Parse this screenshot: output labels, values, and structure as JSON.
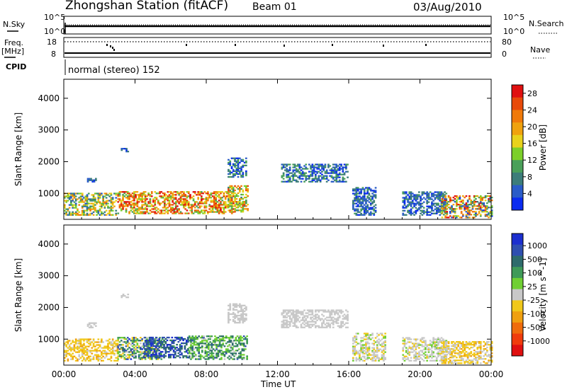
{
  "header": {
    "station": "Zhongshan Station (fitACF)",
    "beam": "Beam 01",
    "date": "03/Aug/2010",
    "mode": "normal (stereo) 152"
  },
  "aux_panels": {
    "nsky_label": "N.Sky",
    "nsky_ticks": [
      "10^5",
      "10^0"
    ],
    "nsearch_label": "N.Search",
    "nsearch_ticks": [
      "10^5",
      "10^0"
    ],
    "freq_label": "Freq.",
    "freq_unit": "[MHz]",
    "freq_ticks": [
      "18",
      "8"
    ],
    "nave_label": "Nave",
    "nave_ticks": [
      "80",
      "0"
    ],
    "cpid_label": "CPID"
  },
  "colors": {
    "power": [
      "#0a2bf0",
      "#2a5cc8",
      "#3c7d7a",
      "#4aa05a",
      "#7ccf2a",
      "#e8d21c",
      "#f0a20e",
      "#f07a0a",
      "#e84a0a",
      "#e01010"
    ],
    "velocity": [
      "#1c2fcf",
      "#2f4fb0",
      "#2e6b6c",
      "#3f9a58",
      "#70cf33",
      "#c8c8c8",
      "#f0c81a",
      "#f0a010",
      "#f06c0c",
      "#f03c0c",
      "#e01010"
    ]
  },
  "chart_data": [
    {
      "type": "heatmap",
      "name": "power",
      "xlabel": "",
      "ylabel": "Slant Range [km]",
      "x_ticks": [
        "00:00",
        "04:00",
        "08:00",
        "12:00",
        "16:00",
        "20:00",
        "00:00"
      ],
      "y_ticks": [
        "1000",
        "2000",
        "3000",
        "4000"
      ],
      "xlim_hours": [
        0,
        24
      ],
      "ylim_km": [
        180,
        4600
      ],
      "colorbar": {
        "label": "Power [dB]",
        "ticks": [
          "4",
          "8",
          "12",
          "16",
          "20",
          "24",
          "28"
        ],
        "range": [
          0,
          30
        ]
      },
      "regions": [
        {
          "t0": 0.0,
          "t1": 2.9,
          "r0": 300,
          "r1": 1000,
          "v0": 3,
          "v1": 22
        },
        {
          "t0": 3.0,
          "t1": 9.5,
          "r0": 350,
          "r1": 1050,
          "v0": 10,
          "v1": 30
        },
        {
          "t0": 9.2,
          "t1": 10.3,
          "r0": 400,
          "r1": 1250,
          "v0": 8,
          "v1": 26
        },
        {
          "t0": 9.2,
          "t1": 10.2,
          "r0": 1500,
          "r1": 2100,
          "v0": 1,
          "v1": 12
        },
        {
          "t0": 12.2,
          "t1": 15.9,
          "r0": 1350,
          "r1": 1900,
          "v0": 1,
          "v1": 12
        },
        {
          "t0": 16.2,
          "t1": 17.5,
          "r0": 300,
          "r1": 1200,
          "v0": 1,
          "v1": 10
        },
        {
          "t0": 19.0,
          "t1": 21.5,
          "r0": 300,
          "r1": 1050,
          "v0": 1,
          "v1": 10
        },
        {
          "t0": 21.2,
          "t1": 24.0,
          "r0": 220,
          "r1": 900,
          "v0": 2,
          "v1": 30
        },
        {
          "t0": 1.3,
          "t1": 1.8,
          "r0": 1350,
          "r1": 1500,
          "v0": 1,
          "v1": 8
        },
        {
          "t0": 3.2,
          "t1": 3.6,
          "r0": 2300,
          "r1": 2400,
          "v0": 1,
          "v1": 8
        }
      ]
    },
    {
      "type": "heatmap",
      "name": "velocity",
      "xlabel": "Time UT",
      "ylabel": "Slant Range [km]",
      "x_ticks": [
        "00:00",
        "04:00",
        "08:00",
        "12:00",
        "16:00",
        "20:00",
        "00:00"
      ],
      "y_ticks": [
        "1000",
        "2000",
        "3000",
        "4000"
      ],
      "xlim_hours": [
        0,
        24
      ],
      "ylim_km": [
        180,
        4600
      ],
      "colorbar": {
        "label": "Velocity [m s^-1]",
        "ticks": [
          "1000",
          "500",
          "100",
          "25",
          "-25",
          "-100",
          "-500",
          "-1000"
        ],
        "range": [
          -1200,
          1200
        ]
      },
      "regions": [
        {
          "t0": 0.0,
          "t1": 3.0,
          "r0": 300,
          "r1": 1000,
          "v0": -400,
          "v1": -50
        },
        {
          "t0": 3.0,
          "t1": 5.5,
          "r0": 350,
          "r1": 1050,
          "v0": -300,
          "v1": 1000
        },
        {
          "t0": 4.5,
          "t1": 7.0,
          "r0": 400,
          "r1": 1050,
          "v0": 500,
          "v1": 1200
        },
        {
          "t0": 7.0,
          "t1": 10.3,
          "r0": 350,
          "r1": 1100,
          "v0": 50,
          "v1": 800
        },
        {
          "t0": 9.2,
          "t1": 10.2,
          "r0": 1500,
          "r1": 2100,
          "v0": -20,
          "v1": 20
        },
        {
          "t0": 12.2,
          "t1": 15.9,
          "r0": 1350,
          "r1": 1900,
          "v0": -20,
          "v1": 20
        },
        {
          "t0": 16.2,
          "t1": 18.0,
          "r0": 300,
          "r1": 1200,
          "v0": -200,
          "v1": 200
        },
        {
          "t0": 19.0,
          "t1": 21.5,
          "r0": 300,
          "r1": 1050,
          "v0": -150,
          "v1": 150
        },
        {
          "t0": 21.2,
          "t1": 24.0,
          "r0": 220,
          "r1": 900,
          "v0": -400,
          "v1": 100
        },
        {
          "t0": 1.3,
          "t1": 1.8,
          "r0": 1350,
          "r1": 1500,
          "v0": -20,
          "v1": 20
        },
        {
          "t0": 3.2,
          "t1": 3.6,
          "r0": 2300,
          "r1": 2400,
          "v0": -20,
          "v1": 20
        }
      ]
    }
  ]
}
